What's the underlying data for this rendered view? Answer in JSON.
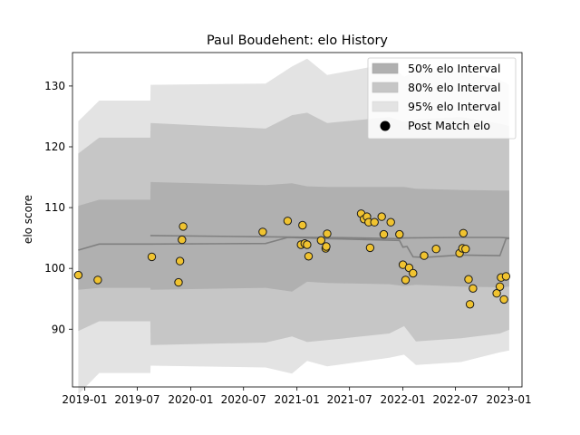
{
  "chart_data": {
    "type": "scatter",
    "title": "Paul Boudehent: elo History",
    "xlabel": "",
    "ylabel": "elo score",
    "xlim": [
      "2018-11-20",
      "2023-02-15"
    ],
    "ylim": [
      80.5,
      135.5
    ],
    "x_ticks": [
      "2019-01",
      "2019-07",
      "2020-01",
      "2020-07",
      "2021-01",
      "2021-07",
      "2022-01",
      "2022-07",
      "2023-01"
    ],
    "y_ticks": [
      90,
      100,
      110,
      120,
      130
    ],
    "grid": false,
    "legend": {
      "placement": "top-right",
      "entries": [
        "50% elo Interval",
        "80% elo Interval",
        "95% elo Interval",
        "Post Match elo"
      ]
    },
    "colors": {
      "interval_50": "#b0b0b0",
      "interval_80": "#c6c6c6",
      "interval_95": "#e3e3e3",
      "mean_line": "#808080",
      "points": "#f0c330",
      "point_edge": "#1a1a1a"
    },
    "series": [
      {
        "name": "Post Match elo",
        "points": [
          [
            "2018-12-10",
            98.9
          ],
          [
            "2019-02-15",
            98.1
          ],
          [
            "2019-08-20",
            101.9
          ],
          [
            "2019-11-20",
            97.7
          ],
          [
            "2019-11-25",
            101.2
          ],
          [
            "2019-12-02",
            104.7
          ],
          [
            "2019-12-06",
            106.9
          ],
          [
            "2020-09-05",
            106.0
          ],
          [
            "2020-11-30",
            107.8
          ],
          [
            "2021-01-15",
            103.9
          ],
          [
            "2021-01-20",
            107.1
          ],
          [
            "2021-01-28",
            104.1
          ],
          [
            "2021-02-05",
            103.9
          ],
          [
            "2021-02-10",
            102.0
          ],
          [
            "2021-03-25",
            104.6
          ],
          [
            "2021-04-10",
            103.3
          ],
          [
            "2021-04-12",
            103.6
          ],
          [
            "2021-04-15",
            105.7
          ],
          [
            "2021-08-10",
            109.0
          ],
          [
            "2021-08-20",
            108.1
          ],
          [
            "2021-08-30",
            108.5
          ],
          [
            "2021-09-05",
            107.6
          ],
          [
            "2021-09-10",
            103.4
          ],
          [
            "2021-09-25",
            107.6
          ],
          [
            "2021-10-20",
            108.5
          ],
          [
            "2021-10-27",
            105.6
          ],
          [
            "2021-11-20",
            107.6
          ],
          [
            "2021-12-20",
            105.6
          ],
          [
            "2022-01-01",
            100.6
          ],
          [
            "2022-01-10",
            98.1
          ],
          [
            "2022-01-22",
            100.1
          ],
          [
            "2022-02-05",
            99.2
          ],
          [
            "2022-03-15",
            102.1
          ],
          [
            "2022-04-25",
            103.2
          ],
          [
            "2022-07-15",
            102.5
          ],
          [
            "2022-07-25",
            103.3
          ],
          [
            "2022-07-28",
            105.8
          ],
          [
            "2022-08-05",
            103.2
          ],
          [
            "2022-08-15",
            98.2
          ],
          [
            "2022-08-20",
            94.1
          ],
          [
            "2022-08-30",
            96.7
          ],
          [
            "2022-11-20",
            95.9
          ],
          [
            "2022-12-01",
            97.0
          ],
          [
            "2022-12-05",
            98.5
          ],
          [
            "2022-12-15",
            94.9
          ],
          [
            "2022-12-22",
            98.7
          ]
        ]
      }
    ],
    "mean_line": [
      [
        "2018-12-10",
        103.0
      ],
      [
        "2019-02-20",
        104.0
      ],
      [
        "2019-08-15",
        104.0
      ],
      [
        "2020-09-15",
        104.1
      ],
      [
        "2020-11-30",
        105.1
      ],
      [
        "2021-04-15",
        104.9
      ],
      [
        "2021-12-20",
        104.6
      ],
      [
        "2022-01-01",
        103.5
      ],
      [
        "2022-01-15",
        103.6
      ],
      [
        "2022-02-05",
        101.9
      ],
      [
        "2022-03-15",
        101.8
      ],
      [
        "2022-07-15",
        102.2
      ],
      [
        "2022-12-01",
        102.1
      ],
      [
        "2022-12-22",
        104.9
      ],
      [
        "2023-01-02",
        104.9
      ]
    ],
    "mean_line_upper": [
      [
        "2019-08-15",
        105.4
      ],
      [
        "2020-09-15",
        105.2
      ],
      [
        "2021-04-15",
        105.1
      ],
      [
        "2021-12-20",
        104.9
      ],
      [
        "2022-01-01",
        105.0
      ],
      [
        "2022-07-15",
        105.1
      ],
      [
        "2022-12-01",
        105.1
      ],
      [
        "2023-01-02",
        105.0
      ]
    ],
    "interval_95_upper": [
      [
        "2018-12-10",
        124.2
      ],
      [
        "2019-02-20",
        127.6
      ],
      [
        "2019-08-15",
        127.6
      ],
      [
        "2019-08-16",
        130.2
      ],
      [
        "2020-09-15",
        130.4
      ],
      [
        "2020-12-15",
        133.2
      ],
      [
        "2021-02-05",
        134.5
      ],
      [
        "2021-04-15",
        131.8
      ],
      [
        "2021-11-15",
        133.7
      ],
      [
        "2022-01-05",
        131.5
      ],
      [
        "2022-02-15",
        132.5
      ],
      [
        "2022-07-20",
        132.5
      ],
      [
        "2022-12-01",
        131.0
      ],
      [
        "2023-01-02",
        130.2
      ]
    ],
    "interval_95_lower": [
      [
        "2018-12-10",
        79.3
      ],
      [
        "2019-02-20",
        82.8
      ],
      [
        "2019-08-15",
        82.8
      ],
      [
        "2019-08-16",
        84.0
      ],
      [
        "2020-09-15",
        83.7
      ],
      [
        "2020-12-15",
        82.7
      ],
      [
        "2021-02-05",
        84.8
      ],
      [
        "2021-04-15",
        83.9
      ],
      [
        "2021-11-15",
        85.3
      ],
      [
        "2022-01-05",
        85.8
      ],
      [
        "2022-02-15",
        84.1
      ],
      [
        "2022-07-20",
        84.6
      ],
      [
        "2022-12-01",
        86.2
      ],
      [
        "2023-01-02",
        86.5
      ]
    ],
    "interval_80_upper": [
      [
        "2018-12-10",
        118.9
      ],
      [
        "2019-02-20",
        121.5
      ],
      [
        "2019-08-15",
        121.5
      ],
      [
        "2019-08-16",
        123.9
      ],
      [
        "2020-09-15",
        123.0
      ],
      [
        "2020-12-15",
        125.2
      ],
      [
        "2021-02-05",
        125.6
      ],
      [
        "2021-04-15",
        123.9
      ],
      [
        "2021-11-15",
        124.9
      ],
      [
        "2022-01-05",
        124.1
      ],
      [
        "2022-02-15",
        124.5
      ],
      [
        "2022-07-20",
        124.9
      ],
      [
        "2022-12-01",
        123.8
      ],
      [
        "2023-01-02",
        123.4
      ]
    ],
    "interval_80_lower": [
      [
        "2018-12-10",
        89.7
      ],
      [
        "2019-02-20",
        91.3
      ],
      [
        "2019-08-15",
        91.3
      ],
      [
        "2019-08-16",
        87.4
      ],
      [
        "2020-09-15",
        87.8
      ],
      [
        "2020-12-15",
        88.8
      ],
      [
        "2021-02-05",
        87.9
      ],
      [
        "2021-04-15",
        88.2
      ],
      [
        "2021-11-15",
        89.3
      ],
      [
        "2022-01-05",
        90.5
      ],
      [
        "2022-02-15",
        88.0
      ],
      [
        "2022-07-20",
        88.5
      ],
      [
        "2022-12-01",
        89.3
      ],
      [
        "2023-01-02",
        89.9
      ]
    ],
    "interval_50_upper": [
      [
        "2018-12-10",
        110.3
      ],
      [
        "2019-02-20",
        111.3
      ],
      [
        "2019-08-15",
        111.3
      ],
      [
        "2019-08-16",
        114.2
      ],
      [
        "2020-09-15",
        113.7
      ],
      [
        "2020-12-15",
        114.0
      ],
      [
        "2021-02-05",
        113.5
      ],
      [
        "2021-04-15",
        113.4
      ],
      [
        "2021-11-15",
        113.4
      ],
      [
        "2022-01-05",
        113.4
      ],
      [
        "2022-02-15",
        113.1
      ],
      [
        "2022-07-20",
        112.9
      ],
      [
        "2022-12-01",
        112.8
      ],
      [
        "2023-01-02",
        112.8
      ]
    ],
    "interval_50_lower": [
      [
        "2018-12-10",
        96.5
      ],
      [
        "2019-02-20",
        96.8
      ],
      [
        "2019-08-15",
        96.8
      ],
      [
        "2019-08-16",
        96.5
      ],
      [
        "2020-09-15",
        96.8
      ],
      [
        "2020-12-15",
        96.2
      ],
      [
        "2021-02-05",
        97.8
      ],
      [
        "2021-04-15",
        97.6
      ],
      [
        "2021-11-15",
        97.4
      ],
      [
        "2022-01-05",
        97.1
      ],
      [
        "2022-02-15",
        97.3
      ],
      [
        "2022-07-20",
        97.0
      ],
      [
        "2022-12-01",
        96.9
      ],
      [
        "2023-01-02",
        97.0
      ]
    ]
  }
}
